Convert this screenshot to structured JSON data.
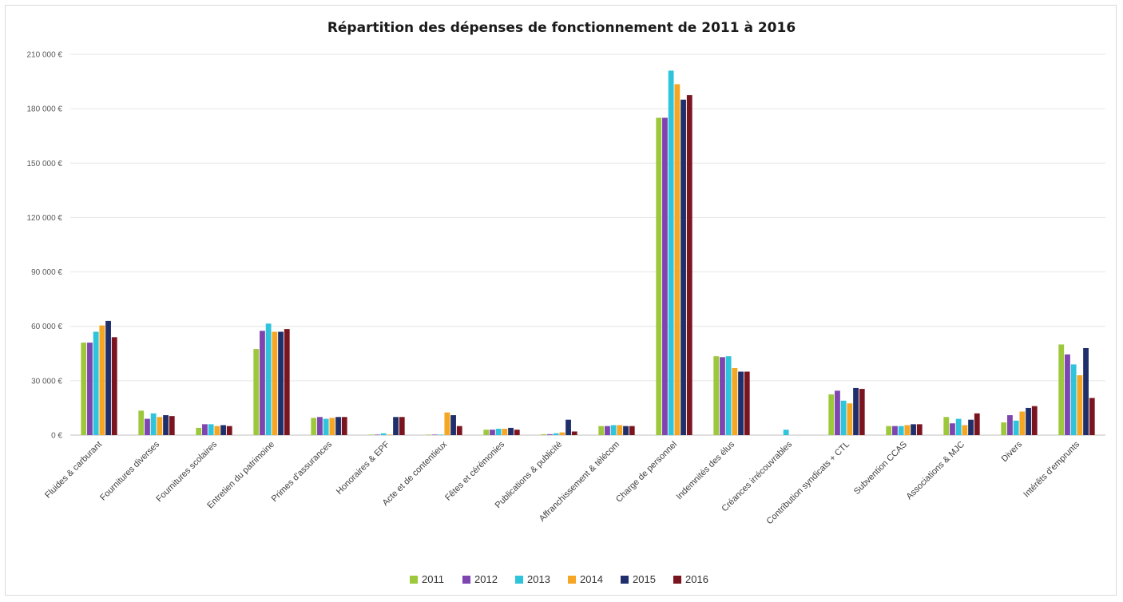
{
  "chart_data": {
    "type": "bar",
    "title": "Répartition des dépenses de fonctionnement de 2011 à 2016",
    "xlabel": "",
    "ylabel": "",
    "ylim": [
      0,
      210000
    ],
    "yticks": [
      0,
      30000,
      60000,
      90000,
      120000,
      150000,
      180000,
      210000
    ],
    "ytick_labels": [
      "0 €",
      "30 000 €",
      "60 000 €",
      "90 000 €",
      "120 000 €",
      "150 000 €",
      "180 000 €",
      "210 000 €"
    ],
    "grid": true,
    "legend": "bottom",
    "categories": [
      "Fluides & carburant",
      "Fournitures diverses",
      "Fournitures scolaires",
      "Entretien du patrimoine",
      "Primes d'assurances",
      "Honoraires & EPF",
      "Acte et de contentieux",
      "Fêtes et cérémonies",
      "Publications & publicité",
      "Affranchissement & télécom",
      "Charge de personnel",
      "Indemnités des élus",
      "Créances irrécouvrables",
      "Contribution syndicats + CTL",
      "Subvention CCAS",
      "Associations & MJC",
      "Divers",
      "Intérêts d'emprunts"
    ],
    "series": [
      {
        "name": "2011",
        "color": "#9dc83c",
        "values": [
          51000,
          13500,
          4000,
          47500,
          9500,
          300,
          300,
          3000,
          500,
          5000,
          175000,
          43500,
          0,
          22500,
          5000,
          10000,
          7000,
          50000
        ]
      },
      {
        "name": "2012",
        "color": "#7e44b0",
        "values": [
          51000,
          9000,
          6000,
          57500,
          10000,
          300,
          300,
          3000,
          500,
          5000,
          175000,
          43000,
          0,
          24500,
          5000,
          6500,
          11000,
          44500
        ]
      },
      {
        "name": "2013",
        "color": "#2ec4dc",
        "values": [
          57000,
          12000,
          6000,
          61500,
          9000,
          1000,
          300,
          3500,
          1000,
          5500,
          201000,
          43500,
          3000,
          19000,
          5000,
          9000,
          8000,
          39000
        ]
      },
      {
        "name": "2014",
        "color": "#f5a623",
        "values": [
          60500,
          10000,
          5000,
          57000,
          9500,
          300,
          12500,
          3500,
          1500,
          5500,
          193500,
          37000,
          0,
          17500,
          5500,
          5500,
          13000,
          33000
        ]
      },
      {
        "name": "2015",
        "color": "#1f2f6b",
        "values": [
          63000,
          11000,
          5500,
          57000,
          10000,
          10000,
          11000,
          4000,
          8500,
          5000,
          185000,
          35000,
          0,
          26000,
          6000,
          8500,
          15000,
          48000
        ]
      },
      {
        "name": "2016",
        "color": "#7a1520",
        "values": [
          54000,
          10500,
          5000,
          58500,
          10000,
          10000,
          5000,
          3000,
          2000,
          5000,
          187500,
          35000,
          0,
          25500,
          6000,
          12000,
          16000,
          20500
        ]
      }
    ]
  }
}
